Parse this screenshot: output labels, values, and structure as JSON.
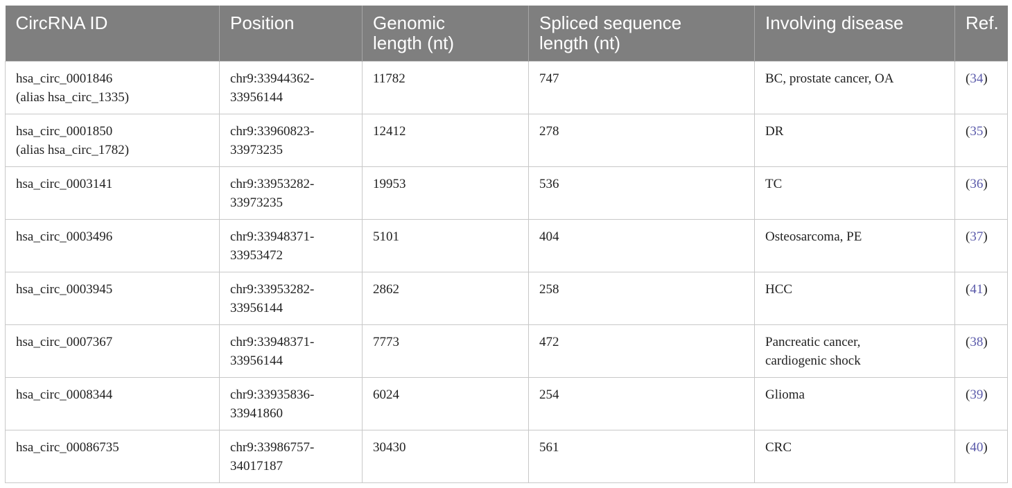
{
  "table": {
    "headers": [
      [
        "CircRNA ID"
      ],
      [
        "Position"
      ],
      [
        "Genomic",
        "length (nt)"
      ],
      [
        "Spliced sequence",
        "length (nt)"
      ],
      [
        "Involving disease"
      ],
      [
        "Ref."
      ]
    ],
    "rows": [
      {
        "circrna_id": [
          "hsa_circ_0001846",
          "(alias hsa_circ_1335)"
        ],
        "position": [
          "chr9:33944362-",
          "33956144"
        ],
        "genomic_length": "11782",
        "spliced_length": "747",
        "disease": [
          "BC, prostate cancer, OA"
        ],
        "ref": "34"
      },
      {
        "circrna_id": [
          "hsa_circ_0001850",
          "(alias hsa_circ_1782)"
        ],
        "position": [
          "chr9:33960823-",
          "33973235"
        ],
        "genomic_length": "12412",
        "spliced_length": "278",
        "disease": [
          "DR"
        ],
        "ref": "35"
      },
      {
        "circrna_id": [
          "hsa_circ_0003141"
        ],
        "position": [
          "chr9:33953282-",
          "33973235"
        ],
        "genomic_length": "19953",
        "spliced_length": "536",
        "disease": [
          "TC"
        ],
        "ref": "36"
      },
      {
        "circrna_id": [
          "hsa_circ_0003496"
        ],
        "position": [
          "chr9:33948371-",
          "33953472"
        ],
        "genomic_length": "5101",
        "spliced_length": "404",
        "disease": [
          "Osteosarcoma, PE"
        ],
        "ref": "37"
      },
      {
        "circrna_id": [
          "hsa_circ_0003945"
        ],
        "position": [
          "chr9:33953282-",
          "33956144"
        ],
        "genomic_length": "2862",
        "spliced_length": "258",
        "disease": [
          "HCC"
        ],
        "ref": "41"
      },
      {
        "circrna_id": [
          "hsa_circ_0007367"
        ],
        "position": [
          "chr9:33948371-",
          "33956144"
        ],
        "genomic_length": "7773",
        "spliced_length": "472",
        "disease": [
          "Pancreatic cancer,",
          "cardiogenic shock"
        ],
        "ref": "38"
      },
      {
        "circrna_id": [
          "hsa_circ_0008344"
        ],
        "position": [
          "chr9:33935836-",
          "33941860"
        ],
        "genomic_length": "6024",
        "spliced_length": "254",
        "disease": [
          "Glioma"
        ],
        "ref": "39"
      },
      {
        "circrna_id": [
          "hsa_circ_00086735"
        ],
        "position": [
          "chr9:33986757-",
          "34017187"
        ],
        "genomic_length": "30430",
        "spliced_length": "561",
        "disease": [
          "CRC"
        ],
        "ref": "40"
      }
    ]
  },
  "colors": {
    "header_bg": "#7f7f7f",
    "header_text": "#ffffff",
    "ref_link": "#5a5aaa",
    "grid": "#c8c8c8"
  }
}
